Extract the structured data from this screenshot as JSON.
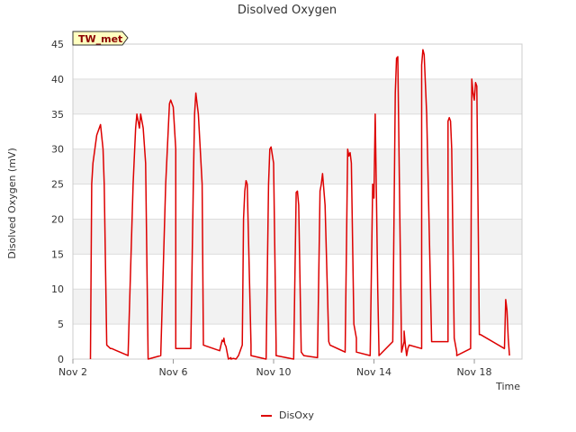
{
  "chart_data": {
    "type": "line",
    "title": "Disolved Oxygen",
    "xlabel": "Time",
    "ylabel": "Disolved Oxygen (mV)",
    "station_label": "TW_met",
    "xlim": [
      2,
      19.9
    ],
    "ylim": [
      0,
      45
    ],
    "x_ticks": [
      {
        "value": 2,
        "label": "Nov 2"
      },
      {
        "value": 6,
        "label": "Nov 6"
      },
      {
        "value": 10,
        "label": "Nov 10"
      },
      {
        "value": 14,
        "label": "Nov 14"
      },
      {
        "value": 18,
        "label": "Nov 18"
      }
    ],
    "y_ticks": [
      0,
      5,
      10,
      15,
      20,
      25,
      30,
      35,
      40,
      45
    ],
    "grid": true,
    "legend_position": "bottom",
    "series": [
      {
        "name": "DisOxy",
        "color": "#dd0000",
        "x": [
          2.7,
          2.75,
          2.8,
          2.95,
          3.1,
          3.2,
          3.25,
          3.35,
          3.5,
          3.55,
          4.2,
          4.4,
          4.5,
          4.55,
          4.65,
          4.7,
          4.8,
          4.9,
          5.0,
          5.5,
          5.7,
          5.85,
          5.9,
          6.0,
          6.1,
          6.1,
          6.7,
          6.8,
          6.85,
          6.9,
          7.0,
          7.15,
          7.2,
          7.85,
          7.9,
          7.95,
          8.0,
          8.02,
          8.05,
          8.1,
          8.2,
          8.3,
          8.3,
          8.4,
          8.5,
          8.6,
          8.75,
          8.8,
          8.85,
          8.9,
          8.95,
          9.1,
          9.1,
          9.7,
          9.8,
          9.85,
          9.9,
          10.0,
          10.1,
          10.1,
          10.8,
          10.85,
          10.9,
          10.95,
          11.0,
          11.1,
          11.2,
          11.75,
          11.85,
          11.9,
          11.95,
          12.05,
          12.2,
          12.25,
          12.85,
          12.95,
          13.0,
          13.05,
          13.1,
          13.2,
          13.3,
          13.3,
          13.85,
          13.95,
          13.95,
          14.0,
          14.0,
          14.05,
          14.1,
          14.15,
          14.2,
          14.2,
          14.75,
          14.85,
          14.9,
          14.95,
          15.05,
          15.1,
          15.2,
          15.2,
          15.25,
          15.3,
          15.35,
          15.4,
          15.9,
          15.9,
          15.95,
          16.0,
          16.1,
          16.3,
          16.95,
          16.95,
          17.0,
          17.05,
          17.1,
          17.2,
          17.3,
          17.3,
          17.85,
          17.9,
          17.95,
          18.0,
          18.05,
          18.1,
          18.2,
          18.25,
          19.2,
          19.25,
          19.3,
          19.35,
          19.4
        ],
        "y": [
          0,
          25,
          28,
          32,
          33.5,
          30,
          25,
          2,
          1.5,
          1.5,
          0.5,
          25,
          33,
          35,
          33,
          35,
          33,
          28,
          0,
          0.5,
          25,
          36.5,
          37,
          36,
          30,
          1.5,
          1.5,
          25,
          35,
          38,
          35,
          25,
          2,
          1.2,
          2,
          2.7,
          2.5,
          3,
          2.2,
          1.8,
          0,
          0.2,
          0,
          0.1,
          0,
          0.5,
          2,
          20,
          24,
          25.5,
          25,
          2,
          0.5,
          0,
          25,
          30,
          30.3,
          28,
          2,
          0.5,
          0,
          12,
          23.8,
          24,
          22,
          1,
          0.5,
          0.2,
          24,
          25,
          26.5,
          22,
          2.5,
          2,
          1,
          30,
          29,
          29.5,
          28,
          5,
          3,
          1,
          0.5,
          25,
          23.5,
          25,
          23,
          35,
          23,
          10,
          1,
          0.5,
          2.5,
          38,
          43,
          43.2,
          15,
          1,
          2.5,
          4,
          2,
          0.5,
          1.5,
          2,
          1.5,
          42,
          44.2,
          43.5,
          35,
          2.5,
          2.5,
          34,
          34.5,
          34,
          30,
          3,
          1,
          0.5,
          1.5,
          40,
          38,
          37,
          39.5,
          39,
          3.5,
          3.5,
          1.5,
          8.5,
          7,
          3,
          0.5
        ]
      }
    ]
  }
}
